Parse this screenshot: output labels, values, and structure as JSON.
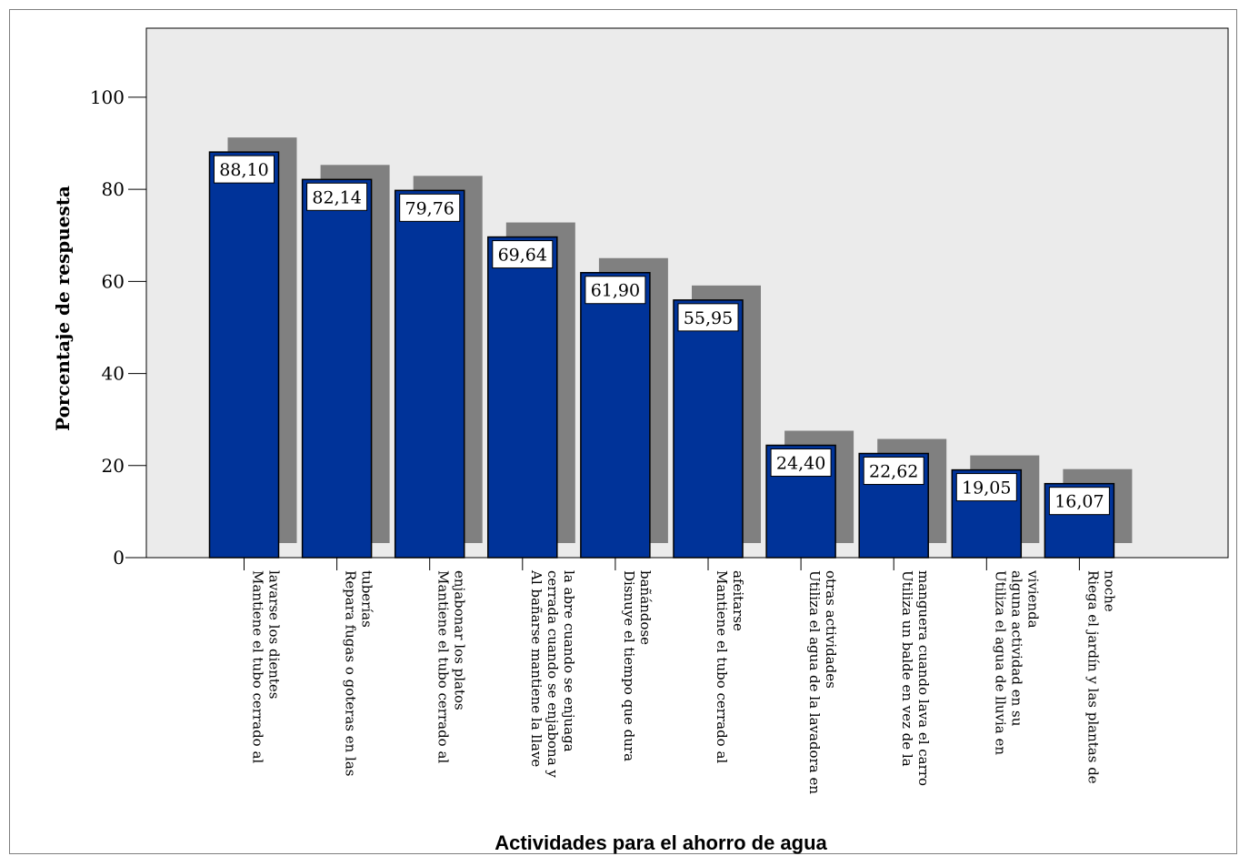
{
  "chart_data": {
    "type": "bar",
    "title": "",
    "xlabel": "Actividades para el ahorro de agua",
    "ylabel": "Porcentaje de respuesta",
    "ylim": [
      0,
      115
    ],
    "yticks": [
      0,
      20,
      40,
      60,
      80,
      100
    ],
    "grid": false,
    "legend": "none",
    "bar_color": "#003399",
    "shadow_color": "#808080",
    "plot_background": "#ebebeb",
    "categories": [
      [
        "Mantiene el tubo cerrado al",
        "lavarse los dientes"
      ],
      [
        "Repara fugas o goteras en las",
        "tuberías"
      ],
      [
        "Mantiene el tubo cerrado al",
        "enjabonar los platos"
      ],
      [
        "Al bañarse mantiene la llave",
        "cerrada cuando se enjabona y",
        "la abre cuando se enjuaga"
      ],
      [
        "Disnuye el tiempo que dura",
        "bañándose"
      ],
      [
        "Mantiene el tubo cerrado al",
        "afeitarse"
      ],
      [
        "Utiliza el agua de la lavadora en",
        "otras actividades"
      ],
      [
        "Utiliza un balde en vez de la",
        "manguera cuando lava el carro"
      ],
      [
        "Utiliza el agua de lluvia en",
        "alguna actividad en su",
        "vivienda"
      ],
      [
        "Riega el jardín y las plantas de",
        "noche"
      ]
    ],
    "values": [
      88.1,
      82.14,
      79.76,
      69.64,
      61.9,
      55.95,
      24.4,
      22.62,
      19.05,
      16.07
    ],
    "data_labels": [
      "88,10",
      "82,14",
      "79,76",
      "69,64",
      "61,90",
      "55,95",
      "24,40",
      "22,62",
      "19,05",
      "16,07"
    ]
  }
}
